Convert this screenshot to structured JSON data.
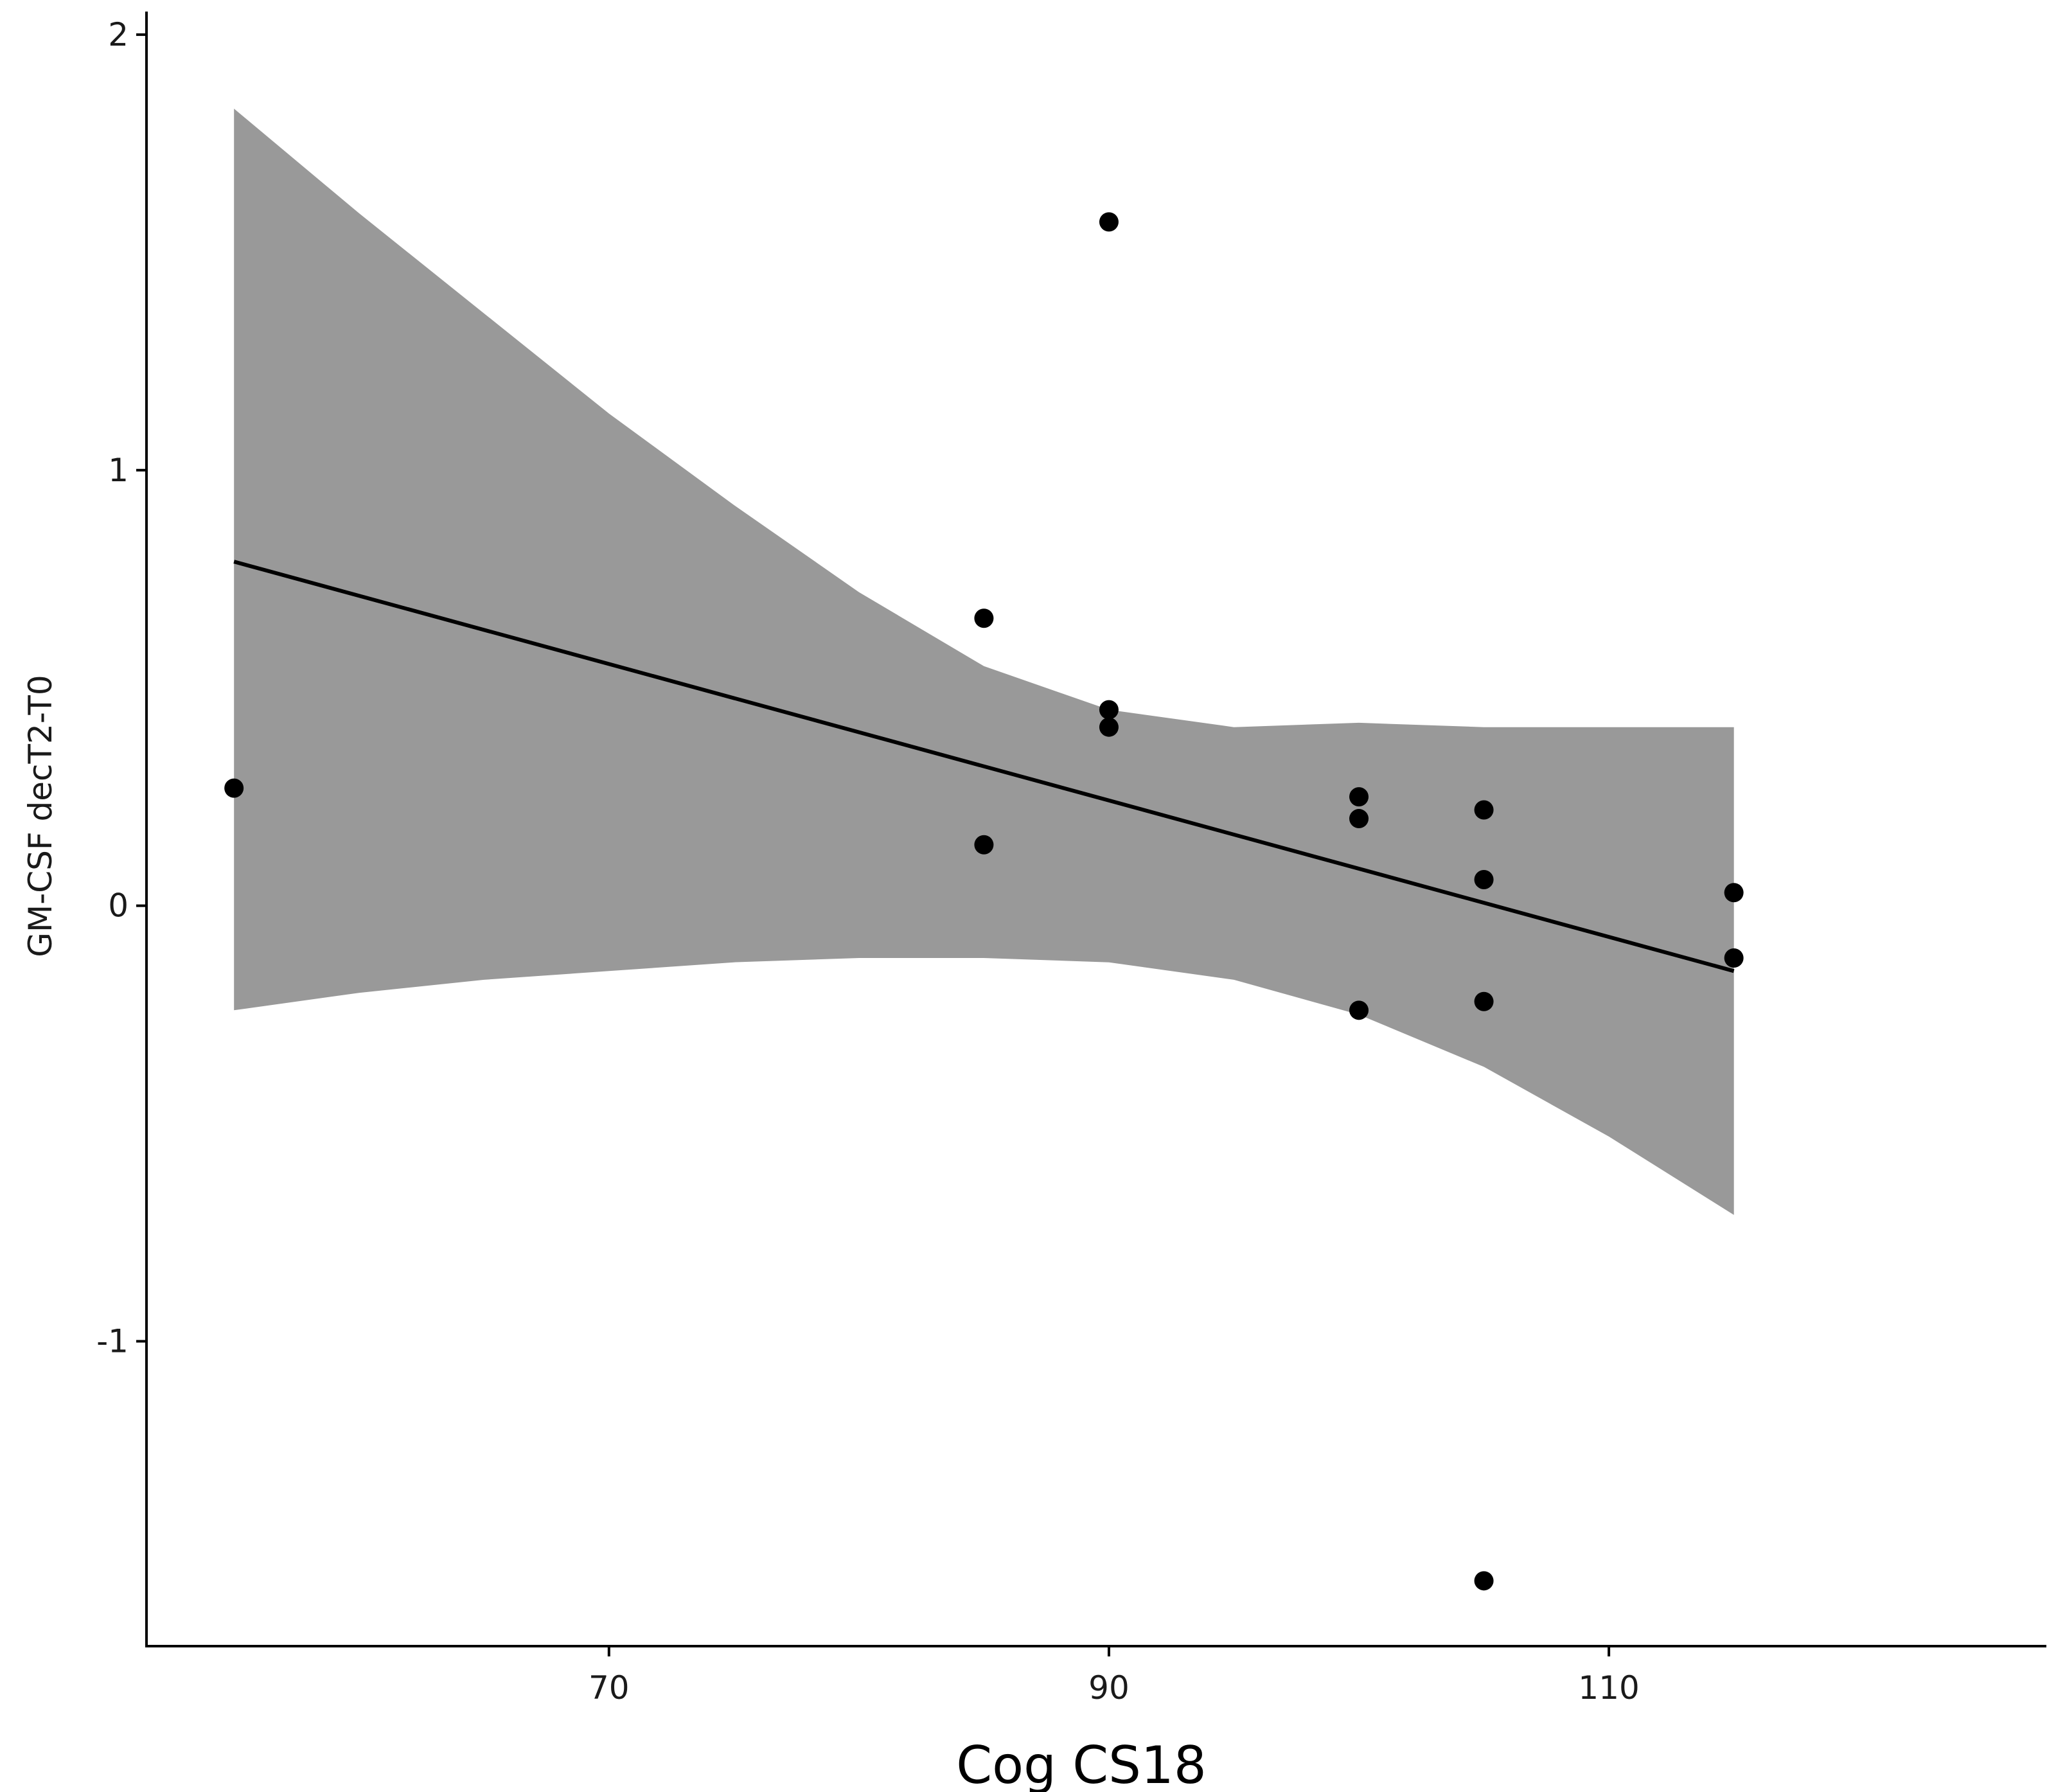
{
  "chart_data": {
    "type": "scatter",
    "title": "",
    "xlabel": "Cog CS18",
    "ylabel": "GM-CSF  decT2-T0",
    "xlim": [
      51.5,
      127.5
    ],
    "ylim": [
      -1.7,
      2.05
    ],
    "x_ticks": [
      70,
      90,
      110
    ],
    "x_tick_labels": [
      "70",
      "90",
      "110"
    ],
    "y_ticks": [
      -1,
      0,
      1,
      2
    ],
    "y_tick_labels": [
      "-1",
      "0",
      "1",
      "2"
    ],
    "grid": false,
    "legend": "none",
    "colors": {
      "points": "#000000",
      "fit_line": "#000000",
      "confidence_band": "#999999",
      "axis": "#000000",
      "tick_label": "#1a1a1a"
    },
    "points": [
      {
        "x": 55,
        "y": 0.27
      },
      {
        "x": 85,
        "y": 0.66
      },
      {
        "x": 85,
        "y": 0.14
      },
      {
        "x": 90,
        "y": 1.57
      },
      {
        "x": 90,
        "y": 0.45
      },
      {
        "x": 90,
        "y": 0.41
      },
      {
        "x": 100,
        "y": 0.25
      },
      {
        "x": 100,
        "y": 0.2
      },
      {
        "x": 100,
        "y": -0.24
      },
      {
        "x": 105,
        "y": 0.22
      },
      {
        "x": 105,
        "y": 0.06
      },
      {
        "x": 105,
        "y": -0.22
      },
      {
        "x": 105,
        "y": -1.55
      },
      {
        "x": 115,
        "y": 0.03
      },
      {
        "x": 115,
        "y": -0.12
      }
    ],
    "fit_line": {
      "x": [
        55,
        115
      ],
      "y": [
        0.79,
        -0.15
      ]
    },
    "confidence_band": {
      "x": [
        55,
        60,
        65,
        70,
        75,
        80,
        85,
        90,
        95,
        100,
        105,
        110,
        115
      ],
      "upper": [
        1.83,
        1.59,
        1.36,
        1.13,
        0.92,
        0.72,
        0.55,
        0.45,
        0.41,
        0.42,
        0.41,
        0.41,
        0.41
      ],
      "lower": [
        -0.24,
        -0.2,
        -0.17,
        -0.15,
        -0.13,
        -0.12,
        -0.12,
        -0.13,
        -0.17,
        -0.25,
        -0.37,
        -0.53,
        -0.71
      ]
    }
  }
}
